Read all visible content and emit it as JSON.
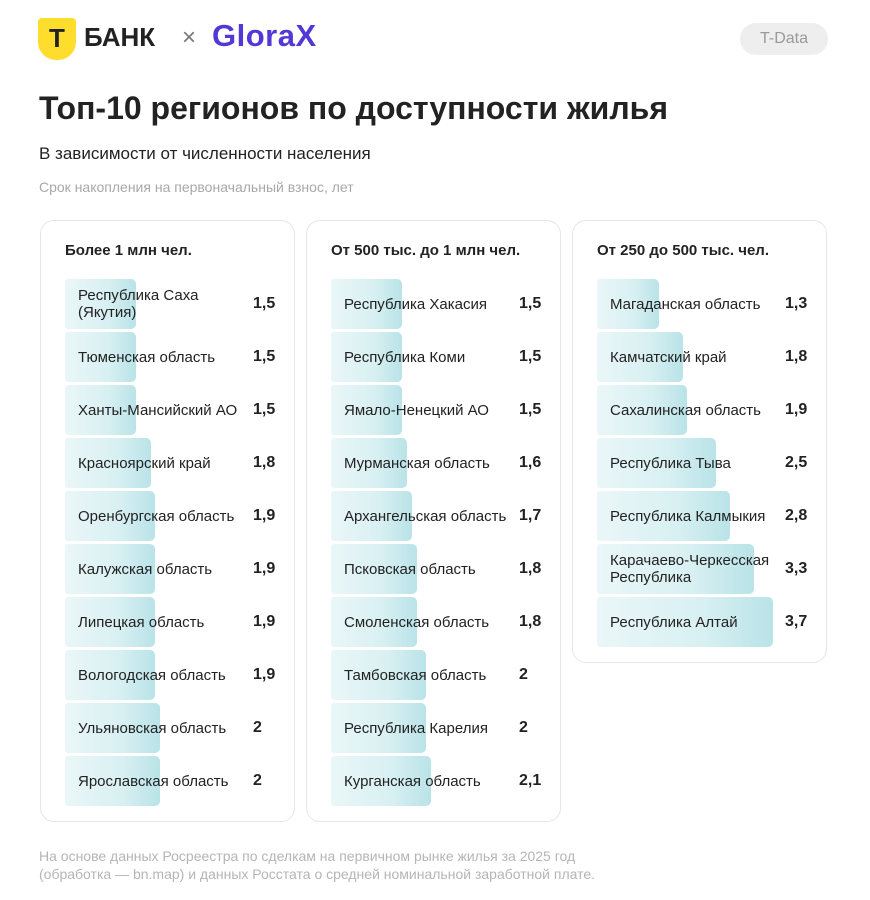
{
  "header": {
    "logo_letter": "Т",
    "brand": "БАНК",
    "separator": "×",
    "partner": "GloraX",
    "badge": "T-Data"
  },
  "title": "Топ-10 регионов по доступности жилья",
  "subtitle": "В зависимости от численности населения",
  "note": "Срок накопления на первоначальный взнос, лет",
  "chart_data": [
    {
      "type": "bar",
      "title": "Более 1 млн чел.",
      "categories": [
        "Республика Саха (Якутия)",
        "Тюменская область",
        "Ханты-Мансийский АО",
        "Красноярский край",
        "Оренбургская область",
        "Калужская область",
        "Липецкая область",
        "Вологодская область",
        "Ульяновская область",
        "Ярославская область"
      ],
      "values": [
        1.5,
        1.5,
        1.5,
        1.8,
        1.9,
        1.9,
        1.9,
        1.9,
        2,
        2
      ],
      "value_labels": [
        "1,5",
        "1,5",
        "1,5",
        "1,8",
        "1,9",
        "1,9",
        "1,9",
        "1,9",
        "2",
        "2"
      ]
    },
    {
      "type": "bar",
      "title": "От 500 тыс. до 1 млн чел.",
      "categories": [
        "Республика Хакасия",
        "Республика Коми",
        "Ямало-Ненецкий АО",
        "Мурманская область",
        "Архангельская область",
        "Псковская область",
        "Смоленская область",
        "Тамбовская область",
        "Республика Карелия",
        "Курганская область"
      ],
      "values": [
        1.5,
        1.5,
        1.5,
        1.6,
        1.7,
        1.8,
        1.8,
        2,
        2,
        2.1
      ],
      "value_labels": [
        "1,5",
        "1,5",
        "1,5",
        "1,6",
        "1,7",
        "1,8",
        "1,8",
        "2",
        "2",
        "2,1"
      ]
    },
    {
      "type": "bar",
      "title": "От 250 до 500 тыс. чел.",
      "categories": [
        "Магаданская область",
        "Камчатский край",
        "Сахалинская область",
        "Республика Тыва",
        "Республика Калмыкия",
        "Карачаево-Черкесская Республика",
        "Республика Алтай"
      ],
      "values": [
        1.3,
        1.8,
        1.9,
        2.5,
        2.8,
        3.3,
        3.7
      ],
      "value_labels": [
        "1,3",
        "1,8",
        "1,9",
        "2,5",
        "2,8",
        "3,3",
        "3,7"
      ]
    }
  ],
  "footnote": "На основе данных Росреестра по сделкам на первичном рынке жилья за 2025 год (обработка — bn.map) и данных Росстата о средней номинальной заработной плате."
}
